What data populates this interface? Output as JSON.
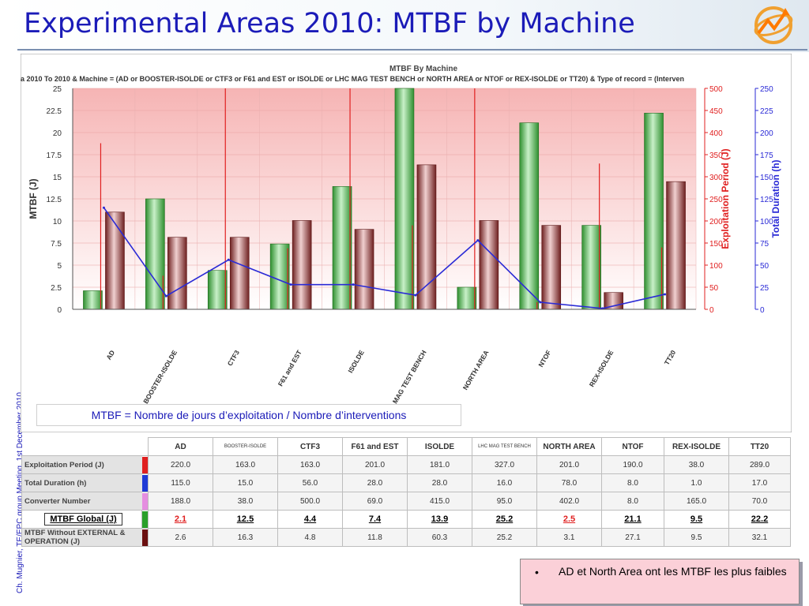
{
  "slide": {
    "title": "Experimental Areas 2010: MTBF by Machine",
    "side_note": "Ch. Mugnier, TE/EPC group Meeting, 1st December 2010",
    "formula": "MTBF = Nombre de jours d’exploitation / Nombre d’interventions",
    "note": "AD et North Area ont les MTBF les plus faibles",
    "note_bullet": "•"
  },
  "colors": {
    "title": "#1b1bb8",
    "mtbf_bar": "#3aa63a",
    "exploitation_bar": "#8b2c2c",
    "duration_line": "#2a2ad6",
    "converter_line": "#e02020",
    "plot_bg_top": "#f6b4b4",
    "note_bg": "#fbd0d8"
  },
  "chart_data": {
    "type": "bar",
    "title": "MTBF By Machine",
    "subtitle": "a 2010 To 2010 & Machine = (AD or BOOSTER-ISOLDE or CTF3 or F61 and EST or ISOLDE or LHC MAG TEST BENCH or NORTH AREA or NTOF or REX-ISOLDE or TT20) & Type of record = (Interven",
    "categories": [
      "AD",
      "BOOSTER-ISOLDE",
      "CTF3",
      "F61 and EST",
      "ISOLDE",
      "LHC MAG TEST BENCH",
      "NORTH AREA",
      "NTOF",
      "REX-ISOLDE",
      "TT20"
    ],
    "ylabel": "MTBF (J)",
    "y2label": "Exploitation Period (J)",
    "y3label": "Total Duration (h)",
    "ylim": [
      0,
      25
    ],
    "y2lim": [
      0,
      500
    ],
    "y3lim": [
      0,
      250
    ],
    "yticks": [
      "0",
      "2.5",
      "5",
      "7.5",
      "10",
      "12.5",
      "15",
      "17.5",
      "20",
      "22.5",
      "25"
    ],
    "y2ticks": [
      "0",
      "50",
      "100",
      "150",
      "200",
      "250",
      "300",
      "350",
      "400",
      "450",
      "500"
    ],
    "y3ticks": [
      "0",
      "25",
      "50",
      "75",
      "100",
      "125",
      "150",
      "175",
      "200",
      "225",
      "250"
    ],
    "series": [
      {
        "name": "MTBF Global (J)",
        "axis": "left",
        "kind": "bar",
        "values": [
          2.1,
          12.5,
          4.4,
          7.4,
          13.9,
          25.2,
          2.5,
          21.1,
          9.5,
          22.2
        ]
      },
      {
        "name": "Exploitation Period (J)",
        "axis": "right",
        "kind": "bar",
        "values": [
          220.0,
          163.0,
          163.0,
          201.0,
          181.0,
          327.0,
          201.0,
          190.0,
          38.0,
          289.0
        ]
      },
      {
        "name": "Total Duration (h)",
        "axis": "right2",
        "kind": "line",
        "values": [
          115.0,
          15.0,
          56.0,
          28.0,
          28.0,
          16.0,
          78.0,
          8.0,
          1.0,
          17.0
        ]
      },
      {
        "name": "Converter Number",
        "axis": "right2",
        "kind": "stem",
        "values": [
          188.0,
          38.0,
          500.0,
          69.0,
          415.0,
          95.0,
          402.0,
          8.0,
          165.0,
          70.0
        ]
      }
    ]
  },
  "table": {
    "columns": [
      "AD",
      "BOOSTER-ISOLDE",
      "CTF3",
      "F61 and EST",
      "ISOLDE",
      "LHC MAG TEST BENCH",
      "NORTH AREA",
      "NTOF",
      "REX-ISOLDE",
      "TT20"
    ],
    "rows": [
      {
        "label": "Exploitation Period (J)",
        "color": "#e02020",
        "values": [
          "220.0",
          "163.0",
          "163.0",
          "201.0",
          "181.0",
          "327.0",
          "201.0",
          "190.0",
          "38.0",
          "289.0"
        ]
      },
      {
        "label": "Total Duration (h)",
        "color": "#1f3ad6",
        "values": [
          "115.0",
          "15.0",
          "56.0",
          "28.0",
          "28.0",
          "16.0",
          "78.0",
          "8.0",
          "1.0",
          "17.0"
        ]
      },
      {
        "label": "Converter Number",
        "color": "#e58ee0",
        "values": [
          "188.0",
          "38.0",
          "500.0",
          "69.0",
          "415.0",
          "95.0",
          "402.0",
          "8.0",
          "165.0",
          "70.0"
        ]
      },
      {
        "label": "MTBF Global (J)",
        "color": "#2aa02a",
        "values": [
          "2.1",
          "12.5",
          "4.4",
          "7.4",
          "13.9",
          "25.2",
          "2.5",
          "21.1",
          "9.5",
          "22.2"
        ],
        "value_colors": [
          "#e02020",
          "#000000",
          "#000000",
          "#000000",
          "#000000",
          "#000000",
          "#e02020",
          "#000000",
          "#000000",
          "#000000"
        ]
      },
      {
        "label": "MTBF Without EXTERNAL & OPERATION (J)",
        "color": "#6b1010",
        "values": [
          "2.6",
          "16.3",
          "4.8",
          "11.8",
          "60.3",
          "25.2",
          "3.1",
          "27.1",
          "9.5",
          "32.1"
        ]
      }
    ]
  }
}
